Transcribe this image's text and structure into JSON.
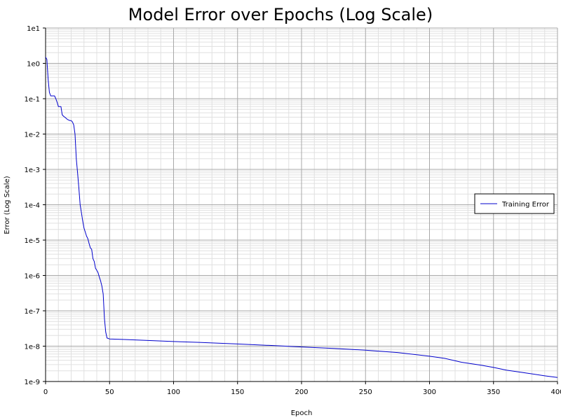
{
  "chart_data": {
    "type": "line",
    "title": "Model Error over Epochs (Log Scale)",
    "xlabel": "Epoch",
    "ylabel": "Error (Log Scale)",
    "xlim": [
      0,
      400
    ],
    "ylim": [
      1e-09,
      10
    ],
    "yscale": "log",
    "grid": true,
    "legend_position": "right",
    "x_ticks": [
      "0",
      "50",
      "100",
      "150",
      "200",
      "250",
      "300",
      "350",
      "400"
    ],
    "y_ticks": [
      "1e1",
      "1e0",
      "1e-1",
      "1e-2",
      "1e-3",
      "1e-4",
      "1e-5",
      "1e-6",
      "1e-7",
      "1e-8",
      "1e-9"
    ],
    "series": [
      {
        "name": "Training Error",
        "color": "#0000cc",
        "points": [
          [
            0,
            1.5
          ],
          [
            1,
            1.3
          ],
          [
            2,
            0.35
          ],
          [
            3,
            0.15
          ],
          [
            4,
            0.12
          ],
          [
            5,
            0.12
          ],
          [
            6,
            0.12
          ],
          [
            7,
            0.12
          ],
          [
            8,
            0.1
          ],
          [
            9,
            0.08
          ],
          [
            10,
            0.06
          ],
          [
            11,
            0.06
          ],
          [
            12,
            0.06
          ],
          [
            13,
            0.035
          ],
          [
            14,
            0.032
          ],
          [
            15,
            0.03
          ],
          [
            16,
            0.028
          ],
          [
            17,
            0.026
          ],
          [
            18,
            0.025
          ],
          [
            19,
            0.024
          ],
          [
            20,
            0.024
          ],
          [
            21,
            0.022
          ],
          [
            22,
            0.018
          ],
          [
            23,
            0.01
          ],
          [
            24,
            0.002
          ],
          [
            25,
            0.0008
          ],
          [
            26,
            0.0003
          ],
          [
            27,
            0.0001
          ],
          [
            28,
            6e-05
          ],
          [
            29,
            3.5e-05
          ],
          [
            30,
            2.2e-05
          ],
          [
            31,
            1.7e-05
          ],
          [
            32,
            1.3e-05
          ],
          [
            33,
            1.1e-05
          ],
          [
            34,
            8e-06
          ],
          [
            35,
            6e-06
          ],
          [
            36,
            5.5e-06
          ],
          [
            37,
            3e-06
          ],
          [
            38,
            2.5e-06
          ],
          [
            39,
            1.6e-06
          ],
          [
            40,
            1.4e-06
          ],
          [
            41,
            1.2e-06
          ],
          [
            42,
            9e-07
          ],
          [
            43,
            7e-07
          ],
          [
            44,
            5e-07
          ],
          [
            45,
            3e-07
          ],
          [
            46,
            6e-08
          ],
          [
            47,
            2.5e-08
          ],
          [
            48,
            1.7e-08
          ],
          [
            50,
            1.6e-08
          ],
          [
            60,
            1.55e-08
          ],
          [
            70,
            1.5e-08
          ],
          [
            80,
            1.45e-08
          ],
          [
            90,
            1.4e-08
          ],
          [
            100,
            1.35e-08
          ],
          [
            120,
            1.28e-08
          ],
          [
            150,
            1.15e-08
          ],
          [
            175,
            1.05e-08
          ],
          [
            200,
            9.5e-09
          ],
          [
            225,
            8.6e-09
          ],
          [
            250,
            7.7e-09
          ],
          [
            275,
            6.6e-09
          ],
          [
            300,
            5.2e-09
          ],
          [
            312,
            4.5e-09
          ],
          [
            325,
            3.5e-09
          ],
          [
            340,
            2.9e-09
          ],
          [
            350,
            2.5e-09
          ],
          [
            360,
            2.1e-09
          ],
          [
            375,
            1.75e-09
          ],
          [
            390,
            1.45e-09
          ],
          [
            400,
            1.3e-09
          ]
        ]
      }
    ]
  }
}
